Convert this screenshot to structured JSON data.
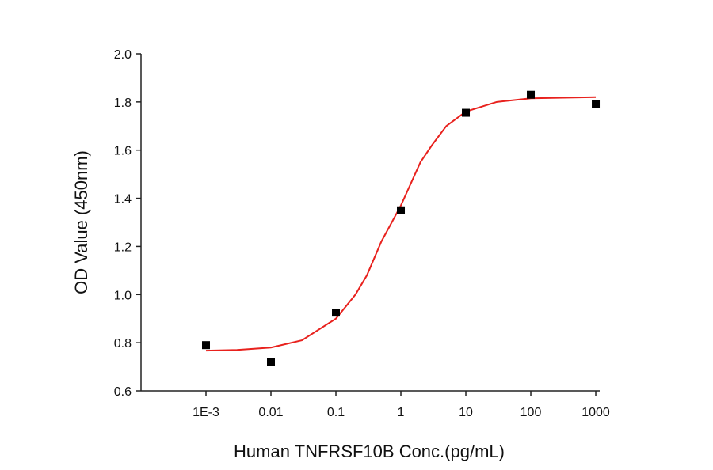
{
  "chart_data": {
    "type": "scatter",
    "x_label": "Human TNFRSF10B Conc.(pg/mL)",
    "y_label": "OD Value (450nm)",
    "x_log": true,
    "xlim": [
      0.0001,
      1150
    ],
    "ylim": [
      0.6,
      2.0
    ],
    "xticks": [
      {
        "value": 0.001,
        "label": "1E-3"
      },
      0.01,
      0.1,
      1,
      10,
      100,
      1000
    ],
    "yticks": [
      0.6,
      0.8,
      {
        "value": 1.0,
        "label": "1.0"
      },
      1.2,
      1.4,
      1.6,
      1.8,
      {
        "value": 2.0,
        "label": "2.0"
      }
    ],
    "series": [
      {
        "style": "markers",
        "color": "#000000",
        "x": [
          0.001,
          0.01,
          0.1,
          1,
          10,
          100,
          1000
        ],
        "values": [
          0.79,
          0.72,
          0.925,
          1.35,
          1.755,
          1.83,
          1.79
        ]
      },
      {
        "style": "line",
        "color": "#e8211d",
        "x": [
          0.001,
          0.003,
          0.01,
          0.03,
          0.1,
          0.2,
          0.3,
          0.5,
          1,
          2,
          3,
          5,
          10,
          30,
          100,
          1000
        ],
        "values": [
          0.767,
          0.77,
          0.78,
          0.81,
          0.9,
          1.0,
          1.08,
          1.22,
          1.37,
          1.55,
          1.62,
          1.7,
          1.76,
          1.8,
          1.815,
          1.82
        ]
      }
    ]
  }
}
